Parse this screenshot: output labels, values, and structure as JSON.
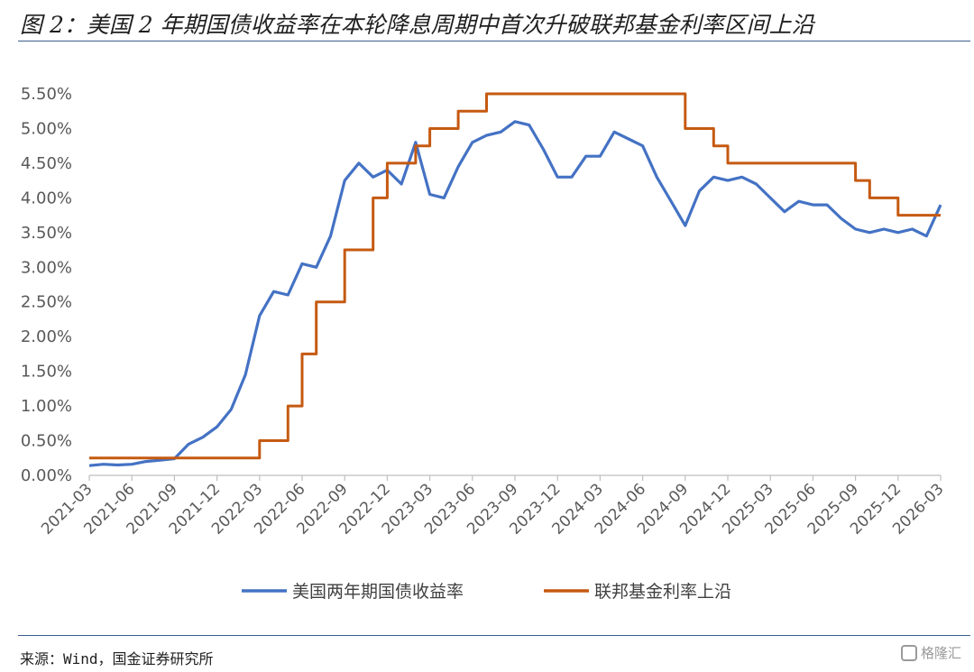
{
  "figure": {
    "title": "图 2：美国 2 年期国债收益率在本轮降息周期中首次升破联邦基金利率区间上沿",
    "source": "来源：Wind，国金证券研究所",
    "watermark": "格隆汇"
  },
  "chart_data": {
    "type": "line",
    "title": "",
    "xlabel": "",
    "ylabel": "",
    "ylim": [
      0,
      5.5
    ],
    "y_tick_labels": [
      "0.00%",
      "0.50%",
      "1.00%",
      "1.50%",
      "2.00%",
      "2.50%",
      "3.00%",
      "3.50%",
      "4.00%",
      "4.50%",
      "5.00%",
      "5.50%"
    ],
    "x_range": [
      "2021-03",
      "2026-03"
    ],
    "x_tick_labels": [
      "2021-03",
      "2021-06",
      "2021-09",
      "2021-12",
      "2022-03",
      "2022-06",
      "2022-09",
      "2022-12",
      "2023-03",
      "2023-06",
      "2023-09",
      "2023-12",
      "2024-03",
      "2024-06",
      "2024-09",
      "2024-12",
      "2025-03",
      "2025-06",
      "2025-09",
      "2025-12",
      "2026-03"
    ],
    "grid": false,
    "legend_position": "bottom",
    "series": [
      {
        "name": "美国两年期国债收益率",
        "color": "#4472c4",
        "points": [
          [
            "2021-03",
            0.14
          ],
          [
            "2021-04",
            0.16
          ],
          [
            "2021-05",
            0.15
          ],
          [
            "2021-06",
            0.16
          ],
          [
            "2021-07",
            0.2
          ],
          [
            "2021-08",
            0.22
          ],
          [
            "2021-09",
            0.24
          ],
          [
            "2021-10",
            0.45
          ],
          [
            "2021-11",
            0.55
          ],
          [
            "2021-12",
            0.7
          ],
          [
            "2022-01",
            0.95
          ],
          [
            "2022-02",
            1.45
          ],
          [
            "2022-03",
            2.3
          ],
          [
            "2022-04",
            2.65
          ],
          [
            "2022-05",
            2.6
          ],
          [
            "2022-06",
            3.05
          ],
          [
            "2022-07",
            3.0
          ],
          [
            "2022-08",
            3.45
          ],
          [
            "2022-09",
            4.25
          ],
          [
            "2022-10",
            4.5
          ],
          [
            "2022-11",
            4.3
          ],
          [
            "2022-12",
            4.4
          ],
          [
            "2023-01",
            4.2
          ],
          [
            "2023-02",
            4.8
          ],
          [
            "2023-03",
            4.05
          ],
          [
            "2023-04",
            4.0
          ],
          [
            "2023-05",
            4.45
          ],
          [
            "2023-06",
            4.8
          ],
          [
            "2023-07",
            4.9
          ],
          [
            "2023-08",
            4.95
          ],
          [
            "2023-09",
            5.1
          ],
          [
            "2023-10",
            5.05
          ],
          [
            "2023-11",
            4.7
          ],
          [
            "2023-12",
            4.3
          ],
          [
            "2024-01",
            4.3
          ],
          [
            "2024-02",
            4.6
          ],
          [
            "2024-03",
            4.6
          ],
          [
            "2024-04",
            4.95
          ],
          [
            "2024-05",
            4.85
          ],
          [
            "2024-06",
            4.75
          ],
          [
            "2024-07",
            4.3
          ],
          [
            "2024-08",
            3.95
          ],
          [
            "2024-09",
            3.6
          ],
          [
            "2024-10",
            4.1
          ],
          [
            "2024-11",
            4.3
          ],
          [
            "2024-12",
            4.25
          ],
          [
            "2025-01",
            4.3
          ],
          [
            "2025-02",
            4.2
          ],
          [
            "2025-03",
            4.0
          ],
          [
            "2025-04",
            3.8
          ],
          [
            "2025-05",
            3.95
          ],
          [
            "2025-06",
            3.9
          ],
          [
            "2025-07",
            3.9
          ],
          [
            "2025-08",
            3.7
          ],
          [
            "2025-09",
            3.55
          ],
          [
            "2025-10",
            3.5
          ],
          [
            "2025-11",
            3.55
          ],
          [
            "2025-12",
            3.5
          ],
          [
            "2026-01",
            3.55
          ],
          [
            "2026-02",
            3.45
          ],
          [
            "2026-03",
            3.9
          ]
        ]
      },
      {
        "name": "联邦基金利率上沿",
        "color": "#c55a11",
        "step": true,
        "points": [
          [
            "2021-03",
            0.25
          ],
          [
            "2022-03",
            0.5
          ],
          [
            "2022-05",
            1.0
          ],
          [
            "2022-06",
            1.75
          ],
          [
            "2022-07",
            2.5
          ],
          [
            "2022-09",
            3.25
          ],
          [
            "2022-11",
            4.0
          ],
          [
            "2022-12",
            4.5
          ],
          [
            "2023-02",
            4.75
          ],
          [
            "2023-03",
            5.0
          ],
          [
            "2023-05",
            5.25
          ],
          [
            "2023-07",
            5.5
          ],
          [
            "2024-09",
            5.0
          ],
          [
            "2024-11",
            4.75
          ],
          [
            "2024-12",
            4.5
          ],
          [
            "2025-09",
            4.25
          ],
          [
            "2025-10",
            4.0
          ],
          [
            "2025-12",
            3.75
          ],
          [
            "2026-03",
            3.75
          ]
        ]
      }
    ]
  }
}
